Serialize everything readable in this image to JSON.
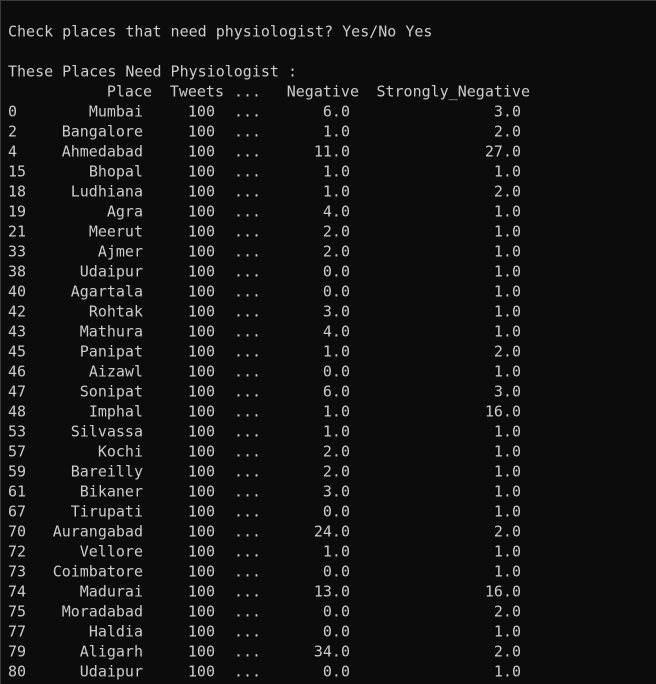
{
  "prompt": "Check places that need physiologist? Yes/No Yes",
  "heading": "These Places Need Physiologist :",
  "table": {
    "columns": [
      "Place",
      "Tweets",
      "...",
      "Negative",
      "Strongly_Negative"
    ],
    "rows": [
      [
        "0",
        "Mumbai",
        "100",
        "...",
        "6.0",
        "3.0"
      ],
      [
        "2",
        "Bangalore",
        "100",
        "...",
        "1.0",
        "2.0"
      ],
      [
        "4",
        "Ahmedabad",
        "100",
        "...",
        "11.0",
        "27.0"
      ],
      [
        "15",
        "Bhopal",
        "100",
        "...",
        "1.0",
        "1.0"
      ],
      [
        "18",
        "Ludhiana",
        "100",
        "...",
        "1.0",
        "2.0"
      ],
      [
        "19",
        "Agra",
        "100",
        "...",
        "4.0",
        "1.0"
      ],
      [
        "21",
        "Meerut",
        "100",
        "...",
        "2.0",
        "1.0"
      ],
      [
        "33",
        "Ajmer",
        "100",
        "...",
        "2.0",
        "1.0"
      ],
      [
        "38",
        "Udaipur",
        "100",
        "...",
        "0.0",
        "1.0"
      ],
      [
        "40",
        "Agartala",
        "100",
        "...",
        "0.0",
        "1.0"
      ],
      [
        "42",
        "Rohtak",
        "100",
        "...",
        "3.0",
        "1.0"
      ],
      [
        "43",
        "Mathura",
        "100",
        "...",
        "4.0",
        "1.0"
      ],
      [
        "45",
        "Panipat",
        "100",
        "...",
        "1.0",
        "2.0"
      ],
      [
        "46",
        "Aizawl",
        "100",
        "...",
        "0.0",
        "1.0"
      ],
      [
        "47",
        "Sonipat",
        "100",
        "...",
        "6.0",
        "3.0"
      ],
      [
        "48",
        "Imphal",
        "100",
        "...",
        "1.0",
        "16.0"
      ],
      [
        "53",
        "Silvassa",
        "100",
        "...",
        "1.0",
        "1.0"
      ],
      [
        "57",
        "Kochi",
        "100",
        "...",
        "2.0",
        "1.0"
      ],
      [
        "59",
        "Bareilly",
        "100",
        "...",
        "2.0",
        "1.0"
      ],
      [
        "61",
        "Bikaner",
        "100",
        "...",
        "3.0",
        "1.0"
      ],
      [
        "67",
        "Tirupati",
        "100",
        "...",
        "0.0",
        "1.0"
      ],
      [
        "70",
        "Aurangabad",
        "100",
        "...",
        "24.0",
        "2.0"
      ],
      [
        "72",
        "Vellore",
        "100",
        "...",
        "1.0",
        "1.0"
      ],
      [
        "73",
        "Coimbatore",
        "100",
        "...",
        "0.0",
        "1.0"
      ],
      [
        "74",
        "Madurai",
        "100",
        "...",
        "13.0",
        "16.0"
      ],
      [
        "75",
        "Moradabad",
        "100",
        "...",
        "0.0",
        "2.0"
      ],
      [
        "77",
        "Haldia",
        "100",
        "...",
        "0.0",
        "1.0"
      ],
      [
        "79",
        "Aligarh",
        "100",
        "...",
        "34.0",
        "2.0"
      ],
      [
        "80",
        "Udaipur",
        "100",
        "...",
        "0.0",
        "1.0"
      ]
    ]
  }
}
